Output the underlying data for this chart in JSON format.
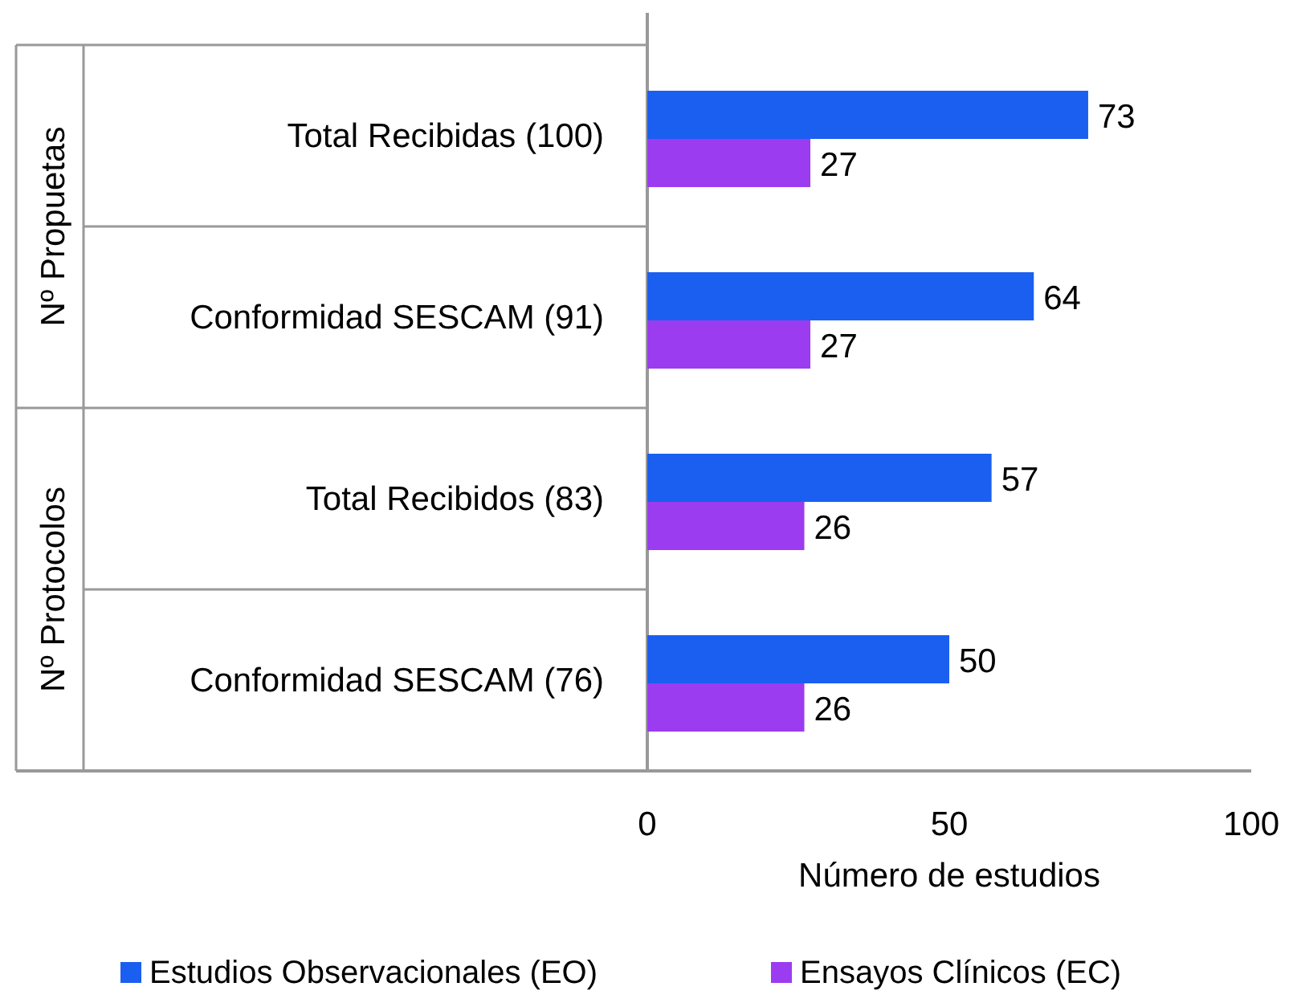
{
  "chart_data": {
    "type": "bar",
    "orientation": "horizontal",
    "categories": [
      "Total Recibidas (100)",
      "Conformidad SESCAM (91)",
      "Total Recibidos (83)",
      "Conformidad SESCAM (76)"
    ],
    "series": [
      {
        "name": "Estudios Observacionales (EO)",
        "color": "#1a5ff0",
        "values": [
          73,
          64,
          57,
          50
        ]
      },
      {
        "name": "Ensayos Clínicos (EC)",
        "color": "#9b3cf0",
        "values": [
          27,
          27,
          26,
          26
        ]
      }
    ],
    "xlim": [
      0,
      100
    ],
    "xticks": [
      0,
      50,
      100
    ],
    "xlabel": "Número de estudios",
    "data_labels": true,
    "grid": false,
    "legend": "bottom",
    "annotations": [
      "Nº Propuetas",
      "Nº Protocolos"
    ]
  }
}
